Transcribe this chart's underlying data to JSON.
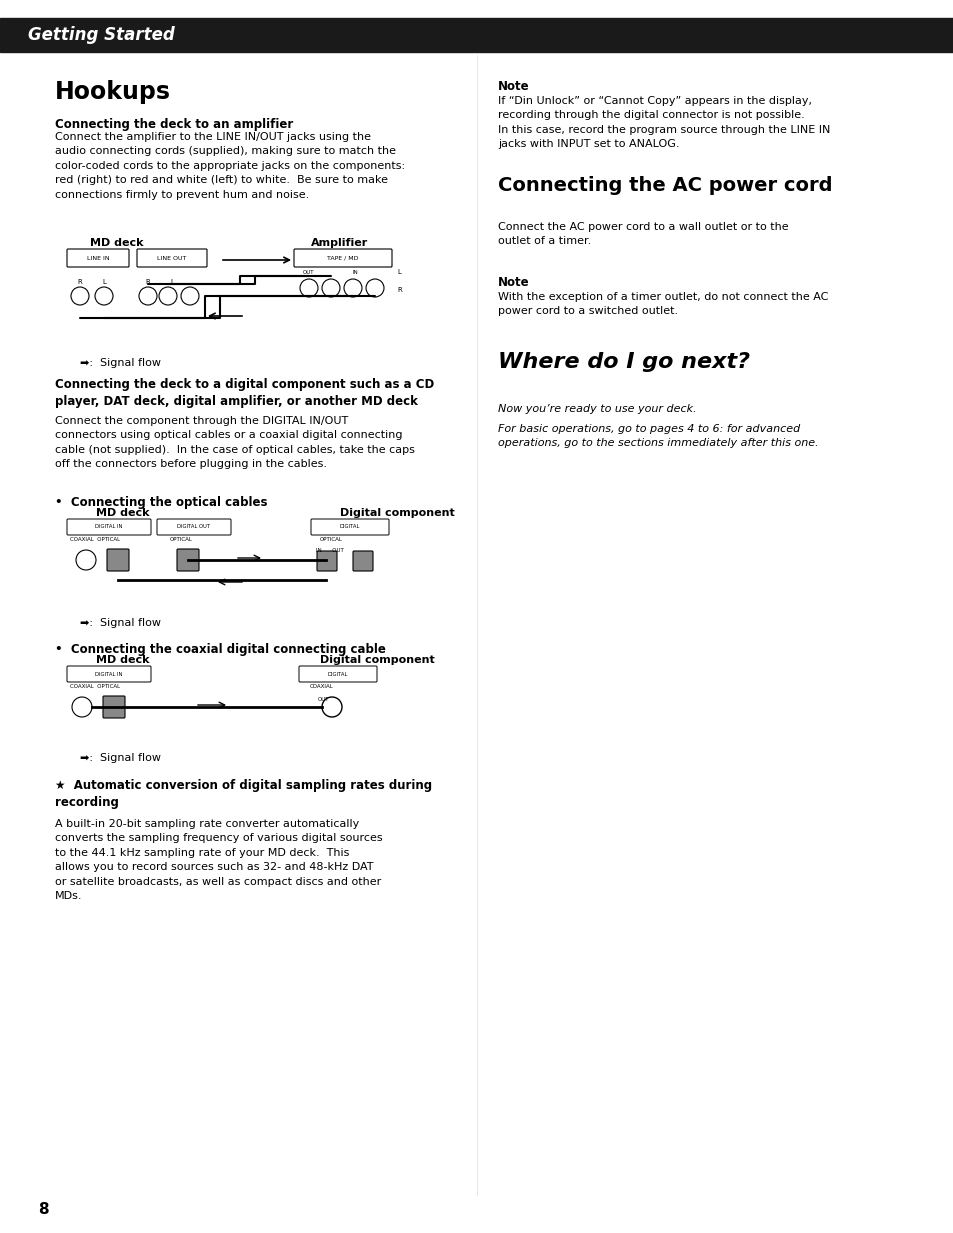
{
  "page_bg": "#ffffff",
  "header_bg": "#1a1a1a",
  "header_text": "Getting Started",
  "header_text_color": "#ffffff",
  "page_number": "8",
  "sections": {
    "hookups_title": "Hookups",
    "amp_heading": "Connecting the deck to an amplifier",
    "amp_body": "Connect the amplifier to the LINE IN/OUT jacks using the\naudio connecting cords (supplied), making sure to match the\ncolor-coded cords to the appropriate jacks on the components:\nred (right) to red and white (left) to white.  Be sure to make\nconnections firmly to prevent hum and noise.",
    "digital_heading": "Connecting the deck to a digital component such as a CD\nplayer, DAT deck, digital amplifier, or another MD deck",
    "digital_body": "Connect the component through the DIGITAL IN/OUT\nconnectors using optical cables or a coaxial digital connecting\ncable (not supplied).  In the case of optical cables, take the caps\noff the connectors before plugging in the cables.",
    "optical_bullet": "•  Connecting the optical cables",
    "coaxial_bullet": "•  Connecting the coaxial digital connecting cable",
    "auto_icon": "★",
    "auto_conversion_heading": "Automatic conversion of digital sampling rates during\nrecording",
    "auto_conversion_body": "A built-in 20-bit sampling rate converter automatically\nconverts the sampling frequency of various digital sources\nto the 44.1 kHz sampling rate of your MD deck.  This\nallows you to record sources such as 32- and 48-kHz DAT\nor satellite broadcasts, as well as compact discs and other\nMDs.",
    "note1_heading": "Note",
    "note1_body": "If “Din Unlock” or “Cannot Copy” appears in the display,\nrecording through the digital connector is not possible.\nIn this case, record the program source through the LINE IN\njacks with INPUT set to ANALOG.",
    "ac_heading": "Connecting the AC power cord",
    "ac_body": "Connect the AC power cord to a wall outlet or to the\noutlet of a timer.",
    "note2_heading": "Note",
    "note2_body": "With the exception of a timer outlet, do not connect the AC\npower cord to a switched outlet.",
    "where_heading": "Where do I go next?",
    "where_body1": "Now you’re ready to use your deck.",
    "where_body2": "For basic operations, go to pages 4 to 6: for advanced\noperations, go to the sections immediately after this one."
  }
}
